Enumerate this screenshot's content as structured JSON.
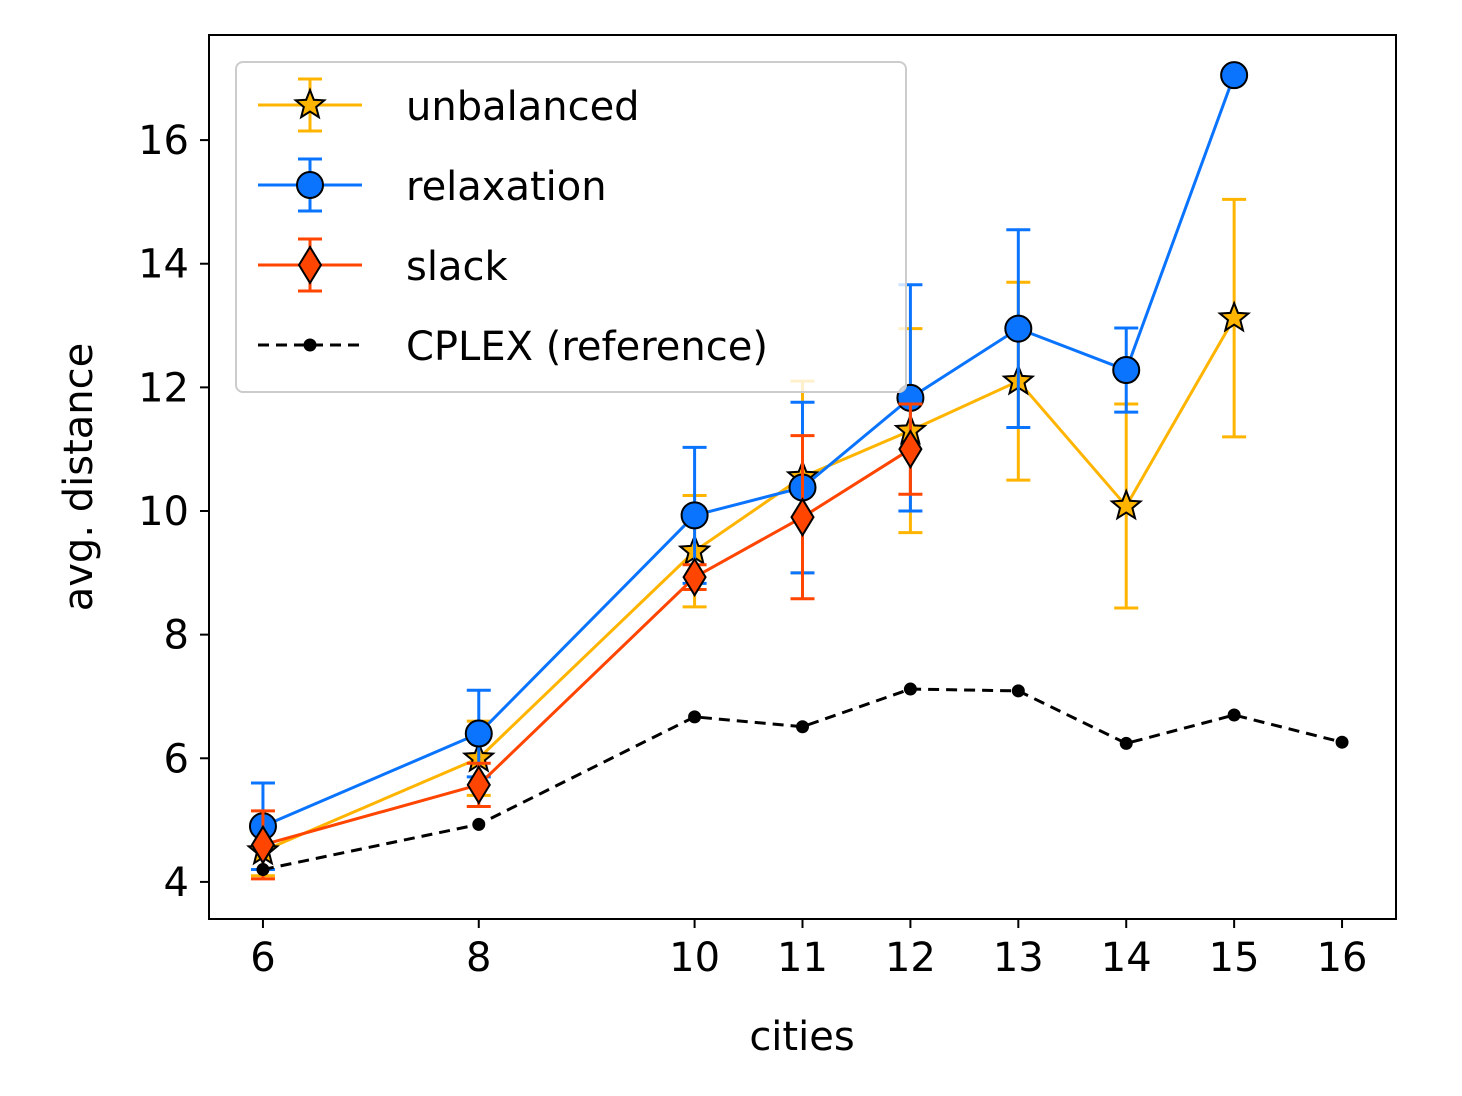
{
  "chart_data": {
    "type": "line",
    "xlabel": "cities",
    "ylabel": "avg. distance",
    "xlim": [
      5.5,
      16.5
    ],
    "ylim": [
      3.4,
      17.7
    ],
    "xticks": [
      6,
      8,
      10,
      11,
      12,
      13,
      14,
      15,
      16
    ],
    "yticks": [
      4,
      6,
      8,
      10,
      12,
      14,
      16
    ],
    "legend_position": "top-left",
    "grid": false,
    "series": [
      {
        "name": "unbalanced",
        "color": "#FFB400",
        "marker": "star",
        "x": [
          6,
          8,
          10,
          11,
          12,
          13,
          14,
          15
        ],
        "y": [
          4.5,
          6.0,
          9.35,
          10.55,
          11.3,
          12.1,
          10.08,
          13.12
        ],
        "err": [
          0.4,
          0.6,
          0.9,
          1.55,
          1.65,
          1.6,
          1.65,
          1.92
        ]
      },
      {
        "name": "relaxation",
        "color": "#0A74FF",
        "marker": "circle",
        "x": [
          6,
          8,
          10,
          11,
          12,
          13,
          14,
          15
        ],
        "y": [
          4.9,
          6.4,
          9.93,
          10.38,
          11.83,
          12.95,
          12.28,
          17.05
        ],
        "err": [
          0.7,
          0.7,
          1.1,
          1.38,
          1.83,
          1.6,
          0.68,
          0.0
        ]
      },
      {
        "name": "slack",
        "color": "#FF4500",
        "marker": "diamond",
        "x": [
          6,
          8,
          10,
          11,
          12
        ],
        "y": [
          4.6,
          5.57,
          8.93,
          9.9,
          11.0
        ],
        "err": [
          0.55,
          0.35,
          0.2,
          1.32,
          0.73
        ]
      },
      {
        "name": "CPLEX (reference)",
        "color": "#000000",
        "marker": "dot",
        "dashed": true,
        "x": [
          6,
          8,
          10,
          11,
          12,
          13,
          14,
          15,
          16
        ],
        "y": [
          4.2,
          4.93,
          6.67,
          6.51,
          7.12,
          7.09,
          6.24,
          6.7,
          6.26
        ]
      }
    ]
  }
}
